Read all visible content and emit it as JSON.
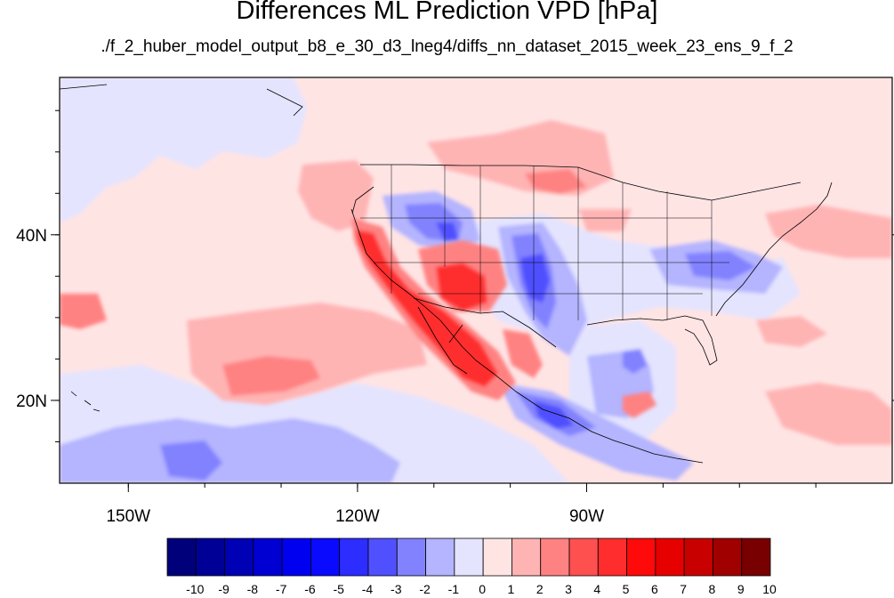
{
  "title": "Differences ML Prediction VPD [hPa]",
  "subtitle": "./f_2_huber_model_output_b8_e_30_d3_lneg4/diffs_nn_dataset_2015_week_23_ens_9_f_2",
  "map": {
    "lon_range": [
      -159,
      -50
    ],
    "lat_range": [
      10,
      59
    ],
    "lon_ticks": [
      {
        "lon": -150,
        "label": "150W"
      },
      {
        "lon": -120,
        "label": "120W"
      },
      {
        "lon": -90,
        "label": "90W"
      }
    ],
    "lat_ticks": [
      {
        "lat": 40,
        "label": "40N"
      },
      {
        "lat": 20,
        "label": "20N"
      }
    ]
  },
  "colorbar": {
    "labels": [
      "-10",
      "-9",
      "-8",
      "-7",
      "-6",
      "-5",
      "-4",
      "-3",
      "-2",
      "-1",
      "0",
      "1",
      "2",
      "3",
      "4",
      "5",
      "6",
      "7",
      "8",
      "9",
      "10"
    ],
    "colors": [
      "#00007a",
      "#000096",
      "#0000b4",
      "#0000d2",
      "#0000f0",
      "#0a0aff",
      "#2d2dff",
      "#5050ff",
      "#8282ff",
      "#b4b4ff",
      "#e4e4ff",
      "#ffe4e4",
      "#ffb4b4",
      "#ff8282",
      "#ff5050",
      "#ff2d2d",
      "#ff0a0a",
      "#e60000",
      "#c80000",
      "#a00000",
      "#780000"
    ]
  },
  "background_color": "#ffe4e4"
}
